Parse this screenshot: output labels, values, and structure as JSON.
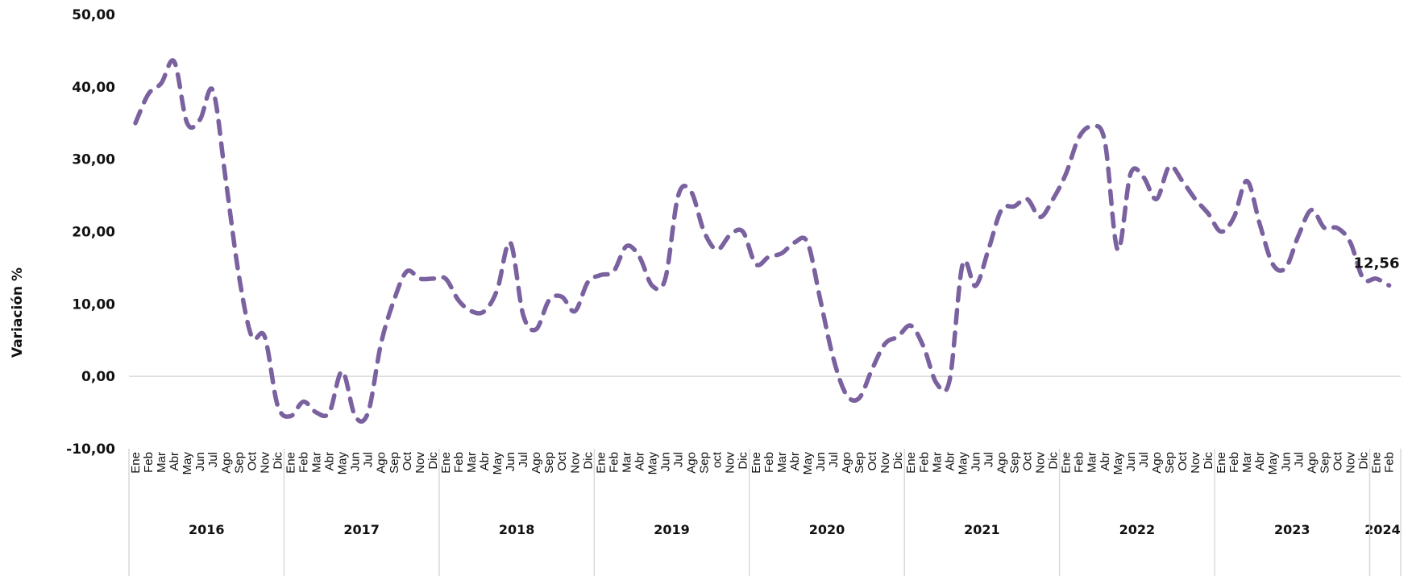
{
  "chart_data": {
    "type": "line",
    "ylabel": "Variación %",
    "ylim": [
      -10,
      50
    ],
    "ytick_labels": [
      "50,00",
      "40,00",
      "30,00",
      "20,00",
      "10,00",
      "0,00",
      "-10,00"
    ],
    "line_color": "#7a619f",
    "line_style": "dashed",
    "grid": false,
    "legend": "none",
    "years": [
      {
        "label": "2016",
        "months": [
          "Ene",
          "Feb",
          "Mar",
          "Abr",
          "May",
          "Jun",
          "Jul",
          "Ago",
          "Sep",
          "Oct",
          "Nov",
          "Dic"
        ]
      },
      {
        "label": "2017",
        "months": [
          "Ene",
          "Feb",
          "Mar",
          "Abr",
          "May",
          "Jun",
          "Jul",
          "Ago",
          "Sep",
          "Oct",
          "Nov",
          "Dic"
        ]
      },
      {
        "label": "2018",
        "months": [
          "Ene",
          "Feb",
          "Mar",
          "Abr",
          "May",
          "Jun",
          "Jul",
          "Ago",
          "Sep",
          "Oct",
          "Nov",
          "Dic"
        ]
      },
      {
        "label": "2019",
        "months": [
          "Ene",
          "Feb",
          "Mar",
          "Abr",
          "May",
          "Jun",
          "Jul",
          "Ago",
          "Sep",
          "oct",
          "Nov",
          "Dic"
        ]
      },
      {
        "label": "2020",
        "months": [
          "Ene",
          "Feb",
          "Mar",
          "Abr",
          "May",
          "Jun",
          "Jul",
          "Ago",
          "Sep",
          "Oct",
          "Nov",
          "Dic"
        ]
      },
      {
        "label": "2021",
        "months": [
          "Ene",
          "Feb",
          "Mar",
          "Abr",
          "May",
          "Jun",
          "Jul",
          "Ago",
          "Sep",
          "Oct",
          "Nov",
          "Dic"
        ]
      },
      {
        "label": "2022",
        "months": [
          "Ene",
          "Feb",
          "Mar",
          "Abr",
          "May",
          "Jun",
          "Jul",
          "Ago",
          "Sep",
          "Oct",
          "Nov",
          "Dic"
        ]
      },
      {
        "label": "2023",
        "months": [
          "Ene",
          "Feb",
          "Mar",
          "Abr",
          "May",
          "Jun",
          "Jul",
          "Ago",
          "Sep",
          "Oct",
          "Nov",
          "Dic"
        ]
      },
      {
        "label": "2024",
        "months": [
          "Ene",
          "Feb"
        ]
      }
    ],
    "series": [
      {
        "values": [
          35.0,
          39.0,
          40.5,
          43.5,
          35.0,
          35.5,
          39.5,
          27.0,
          14.0,
          5.5,
          5.5,
          -4.0,
          -5.5,
          -3.5,
          -5.0,
          -5.0,
          0.7,
          -5.5,
          -5.0,
          4.5,
          10.5,
          14.5,
          13.5,
          13.5,
          13.5,
          10.5,
          9.0,
          9.0,
          12.0,
          18.5,
          8.5,
          6.5,
          10.5,
          11.0,
          9.0,
          13.0,
          14.0,
          14.5,
          18.0,
          16.5,
          12.5,
          13.5,
          25.0,
          25.5,
          20.0,
          17.5,
          19.5,
          20.0,
          15.5,
          16.5,
          17.0,
          18.5,
          18.5,
          10.5,
          2.5,
          -2.5,
          -3.0,
          1.0,
          4.5,
          5.5,
          7.0,
          4.0,
          -1.0,
          -0.5,
          15.5,
          12.5,
          17.5,
          23.0,
          23.5,
          24.5,
          22.0,
          24.5,
          28.0,
          33.0,
          34.5,
          32.5,
          17.5,
          28.0,
          27.5,
          24.5,
          29.0,
          27.0,
          24.5,
          22.5,
          20.0,
          22.0,
          27.0,
          21.0,
          15.5,
          15.0,
          19.5,
          23.0,
          20.5,
          20.5,
          18.5,
          13.5,
          13.5,
          12.56
        ]
      }
    ],
    "last_point_label": "12,56"
  }
}
